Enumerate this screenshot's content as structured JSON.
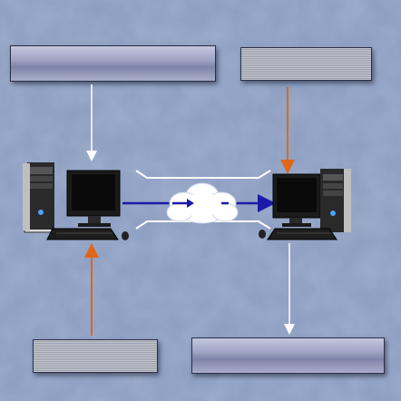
{
  "diagram": {
    "background_color": "#8a9cc0",
    "arrow_colors": {
      "white": "#ffffff",
      "orange": "#e0661a",
      "blue": "#1a1aa8"
    },
    "boxes": [
      {
        "id": "top-left-label-box",
        "text": "",
        "style": "gradient"
      },
      {
        "id": "top-right-label-box",
        "text": "",
        "style": "lined"
      },
      {
        "id": "bottom-left-label-box",
        "text": "",
        "style": "lined"
      },
      {
        "id": "bottom-right-label-box",
        "text": "",
        "style": "gradient"
      }
    ],
    "icons": [
      "desktop-computer-icon",
      "desktop-computer-icon",
      "cloud-icon"
    ]
  }
}
